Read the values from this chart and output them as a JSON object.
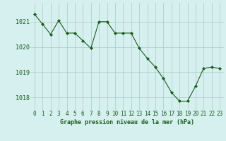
{
  "x": [
    0,
    1,
    2,
    3,
    4,
    5,
    6,
    7,
    8,
    9,
    10,
    11,
    12,
    13,
    14,
    15,
    16,
    17,
    18,
    19,
    20,
    21,
    22,
    23
  ],
  "y": [
    1021.3,
    1020.9,
    1020.5,
    1021.05,
    1020.55,
    1020.55,
    1020.25,
    1019.95,
    1021.0,
    1021.0,
    1020.55,
    1020.55,
    1020.55,
    1019.95,
    1019.55,
    1019.2,
    1018.75,
    1018.2,
    1017.85,
    1017.85,
    1018.45,
    1019.15,
    1019.2,
    1019.15
  ],
  "line_color": "#1a5c1a",
  "marker_color": "#1a5c1a",
  "bg_color": "#d6f0f0",
  "grid_color": "#a8c8c8",
  "text_color": "#1a5c1a",
  "xlabel": "Graphe pression niveau de la mer (hPa)",
  "ylim_min": 1017.5,
  "ylim_max": 1021.75,
  "yticks": [
    1018,
    1019,
    1020,
    1021
  ],
  "xticks": [
    0,
    1,
    2,
    3,
    4,
    5,
    6,
    7,
    8,
    9,
    10,
    11,
    12,
    13,
    14,
    15,
    16,
    17,
    18,
    19,
    20,
    21,
    22,
    23
  ],
  "xlabel_fontsize": 6.0,
  "tick_fontsize": 5.5,
  "ytick_fontsize": 6.0
}
